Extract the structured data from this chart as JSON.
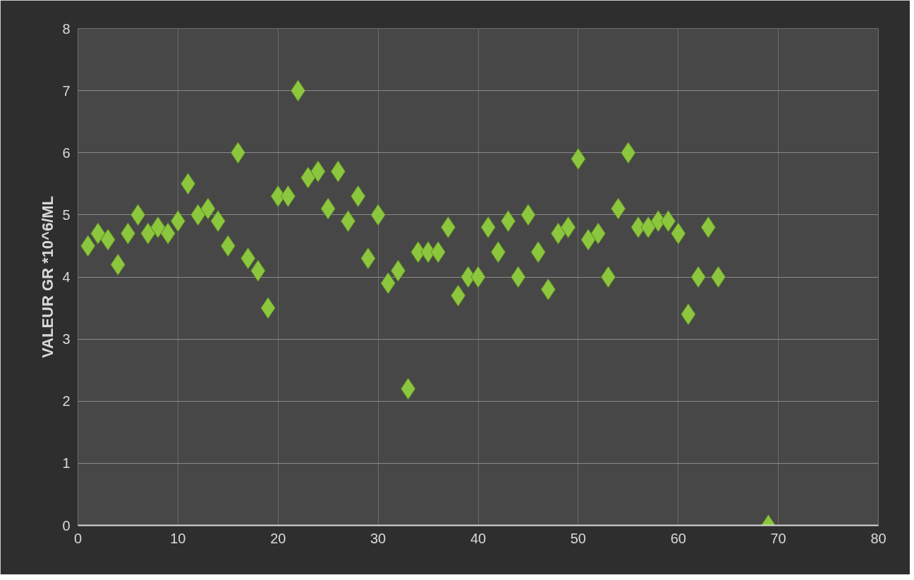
{
  "chart_data": {
    "type": "scatter",
    "ylabel": "VALEUR GR *10^6/ML",
    "x": [
      1,
      2,
      3,
      4,
      5,
      6,
      7,
      8,
      9,
      10,
      11,
      12,
      13,
      14,
      15,
      16,
      17,
      18,
      19,
      20,
      21,
      22,
      23,
      24,
      25,
      26,
      27,
      28,
      29,
      30,
      31,
      32,
      33,
      34,
      35,
      36,
      37,
      38,
      39,
      40,
      41,
      42,
      43,
      44,
      45,
      46,
      47,
      48,
      49,
      50,
      51,
      52,
      53,
      54,
      55,
      56,
      57,
      58,
      59,
      60,
      61,
      62,
      63,
      64,
      69
    ],
    "series": [
      {
        "color": "#8cc63f",
        "values": [
          4.5,
          4.7,
          4.6,
          4.2,
          4.7,
          5.0,
          4.7,
          4.8,
          4.7,
          4.9,
          5.5,
          5.0,
          5.1,
          4.9,
          4.5,
          6.0,
          4.3,
          4.1,
          3.5,
          5.3,
          5.3,
          7.0,
          5.6,
          5.7,
          5.1,
          5.7,
          4.9,
          5.3,
          4.3,
          5.0,
          3.9,
          4.1,
          2.2,
          4.4,
          4.4,
          4.4,
          4.8,
          3.7,
          4.0,
          4.0,
          4.8,
          4.4,
          4.9,
          4.0,
          5.0,
          4.4,
          3.8,
          4.7,
          4.8,
          5.9,
          4.6,
          4.7,
          4.0,
          5.1,
          6.0,
          4.8,
          4.8,
          4.9,
          4.9,
          4.7,
          3.4,
          4.0,
          4.8,
          4.0,
          0
        ]
      }
    ],
    "marker": "diamond",
    "xlim": [
      0,
      80
    ],
    "xticks": [
      0,
      10,
      20,
      30,
      40,
      50,
      60,
      70,
      80
    ],
    "ylim": [
      0,
      8
    ],
    "yticks": [
      0,
      1,
      2,
      3,
      4,
      5,
      6,
      7,
      8
    ],
    "grid": true
  }
}
